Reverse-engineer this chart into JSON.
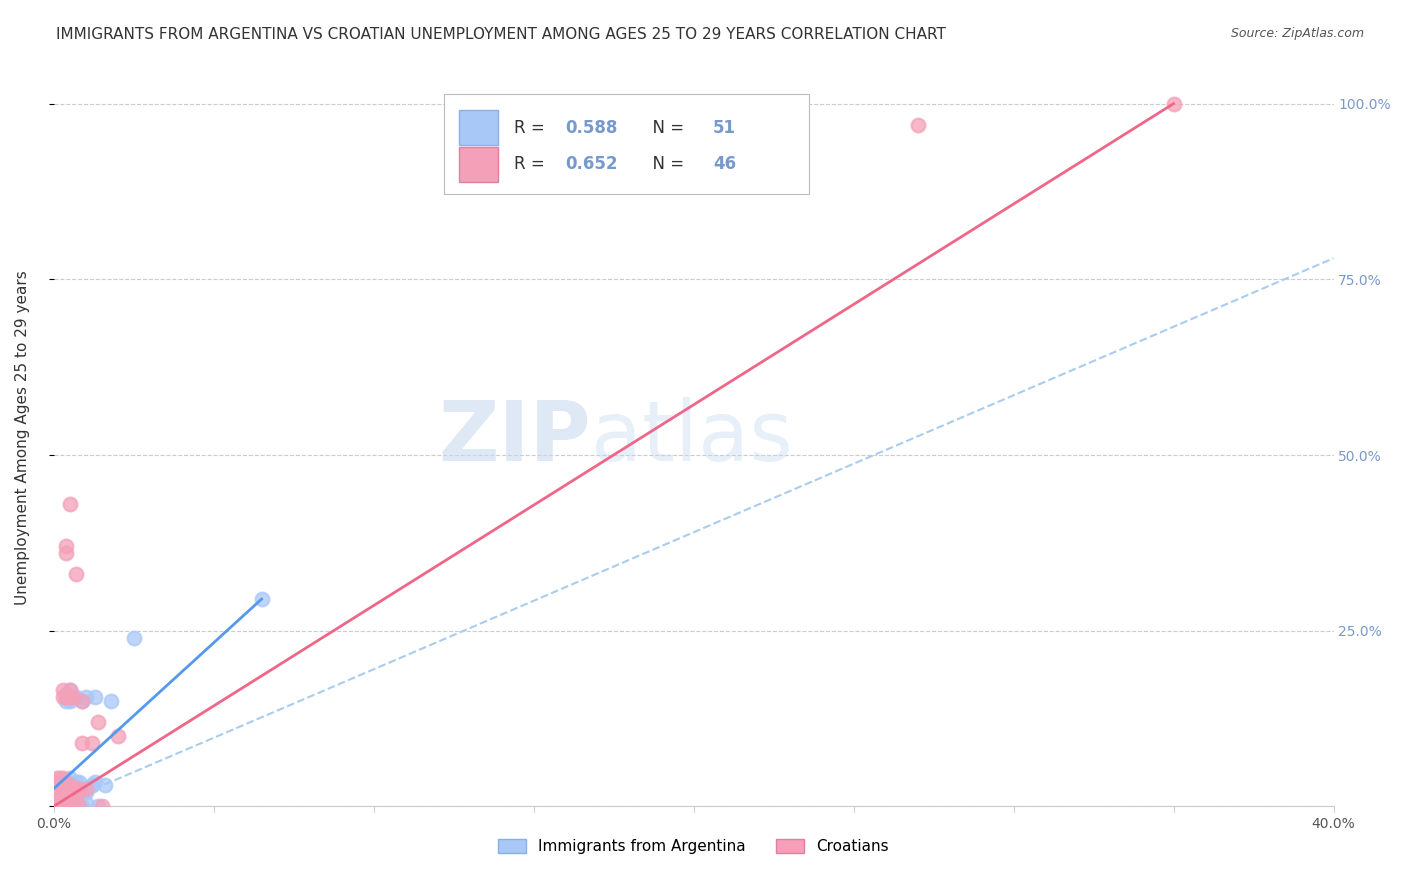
{
  "title": "IMMIGRANTS FROM ARGENTINA VS CROATIAN UNEMPLOYMENT AMONG AGES 25 TO 29 YEARS CORRELATION CHART",
  "source": "Source: ZipAtlas.com",
  "ylabel": "Unemployment Among Ages 25 to 29 years",
  "x_min": 0.0,
  "x_max": 0.4,
  "y_min": 0.0,
  "y_max": 1.05,
  "x_ticks": [
    0.0,
    0.05,
    0.1,
    0.15,
    0.2,
    0.25,
    0.3,
    0.35,
    0.4
  ],
  "x_tick_labels": [
    "0.0%",
    "",
    "",
    "",
    "",
    "",
    "",
    "",
    "40.0%"
  ],
  "y_ticks": [
    0.0,
    0.25,
    0.5,
    0.75,
    1.0
  ],
  "y_tick_labels_right": [
    "",
    "25.0%",
    "50.0%",
    "75.0%",
    "100.0%"
  ],
  "legend_r1": "R = 0.588",
  "legend_n1": "N = 51",
  "legend_r2": "R = 0.652",
  "legend_n2": "N = 46",
  "blue_color": "#a8c8f8",
  "pink_color": "#f4a0b8",
  "blue_line_color": "#5599ee",
  "pink_line_color": "#ee6688",
  "dashed_line_color": "#aaccee",
  "right_axis_color": "#7799cc",
  "watermark_color": "#d8e8f8",
  "grid_color": "#cccccc",
  "argentina_points": [
    [
      0.0,
      0.0
    ],
    [
      0.001,
      0.0
    ],
    [
      0.001,
      0.005
    ],
    [
      0.002,
      0.0
    ],
    [
      0.002,
      0.02
    ],
    [
      0.002,
      0.03
    ],
    [
      0.003,
      0.0
    ],
    [
      0.003,
      0.01
    ],
    [
      0.003,
      0.02
    ],
    [
      0.003,
      0.03
    ],
    [
      0.004,
      0.0
    ],
    [
      0.004,
      0.005
    ],
    [
      0.004,
      0.01
    ],
    [
      0.004,
      0.03
    ],
    [
      0.004,
      0.15
    ],
    [
      0.004,
      0.16
    ],
    [
      0.005,
      0.0
    ],
    [
      0.005,
      0.005
    ],
    [
      0.005,
      0.02
    ],
    [
      0.005,
      0.03
    ],
    [
      0.005,
      0.04
    ],
    [
      0.005,
      0.15
    ],
    [
      0.005,
      0.165
    ],
    [
      0.006,
      0.0
    ],
    [
      0.006,
      0.02
    ],
    [
      0.006,
      0.025
    ],
    [
      0.006,
      0.03
    ],
    [
      0.006,
      0.155
    ],
    [
      0.007,
      0.0
    ],
    [
      0.007,
      0.01
    ],
    [
      0.007,
      0.02
    ],
    [
      0.007,
      0.035
    ],
    [
      0.007,
      0.155
    ],
    [
      0.008,
      0.005
    ],
    [
      0.008,
      0.025
    ],
    [
      0.008,
      0.035
    ],
    [
      0.009,
      0.0
    ],
    [
      0.009,
      0.02
    ],
    [
      0.009,
      0.15
    ],
    [
      0.01,
      0.005
    ],
    [
      0.01,
      0.02
    ],
    [
      0.01,
      0.155
    ],
    [
      0.012,
      0.03
    ],
    [
      0.012,
      0.03
    ],
    [
      0.013,
      0.035
    ],
    [
      0.013,
      0.155
    ],
    [
      0.014,
      0.0
    ],
    [
      0.016,
      0.03
    ],
    [
      0.018,
      0.15
    ],
    [
      0.025,
      0.24
    ],
    [
      0.065,
      0.295
    ]
  ],
  "croatian_points": [
    [
      0.0,
      0.0
    ],
    [
      0.001,
      0.0
    ],
    [
      0.001,
      0.005
    ],
    [
      0.001,
      0.04
    ],
    [
      0.002,
      0.0
    ],
    [
      0.002,
      0.01
    ],
    [
      0.002,
      0.02
    ],
    [
      0.002,
      0.04
    ],
    [
      0.003,
      0.0
    ],
    [
      0.003,
      0.005
    ],
    [
      0.003,
      0.015
    ],
    [
      0.003,
      0.025
    ],
    [
      0.003,
      0.04
    ],
    [
      0.003,
      0.155
    ],
    [
      0.003,
      0.165
    ],
    [
      0.004,
      0.0
    ],
    [
      0.004,
      0.01
    ],
    [
      0.004,
      0.015
    ],
    [
      0.004,
      0.025
    ],
    [
      0.004,
      0.155
    ],
    [
      0.004,
      0.36
    ],
    [
      0.004,
      0.37
    ],
    [
      0.005,
      0.0
    ],
    [
      0.005,
      0.015
    ],
    [
      0.005,
      0.025
    ],
    [
      0.005,
      0.03
    ],
    [
      0.005,
      0.155
    ],
    [
      0.005,
      0.165
    ],
    [
      0.005,
      0.43
    ],
    [
      0.006,
      0.005
    ],
    [
      0.006,
      0.025
    ],
    [
      0.006,
      0.155
    ],
    [
      0.007,
      0.015
    ],
    [
      0.007,
      0.025
    ],
    [
      0.007,
      0.33
    ],
    [
      0.008,
      0.0
    ],
    [
      0.008,
      0.025
    ],
    [
      0.009,
      0.09
    ],
    [
      0.009,
      0.15
    ],
    [
      0.01,
      0.025
    ],
    [
      0.012,
      0.09
    ],
    [
      0.014,
      0.12
    ],
    [
      0.015,
      0.0
    ],
    [
      0.02,
      0.1
    ],
    [
      0.27,
      0.97
    ],
    [
      0.35,
      1.0
    ]
  ],
  "argentina_line_x": [
    0.0,
    0.065
  ],
  "argentina_line_y": [
    0.025,
    0.295
  ],
  "croatian_line_x": [
    0.0,
    0.35
  ],
  "croatian_line_y": [
    0.0,
    1.0
  ],
  "dashed_line_x": [
    0.0,
    0.4
  ],
  "dashed_line_y": [
    0.0,
    0.78
  ],
  "title_fontsize": 11,
  "axis_label_fontsize": 11,
  "tick_fontsize": 10,
  "legend_fontsize": 12,
  "source_fontsize": 9
}
